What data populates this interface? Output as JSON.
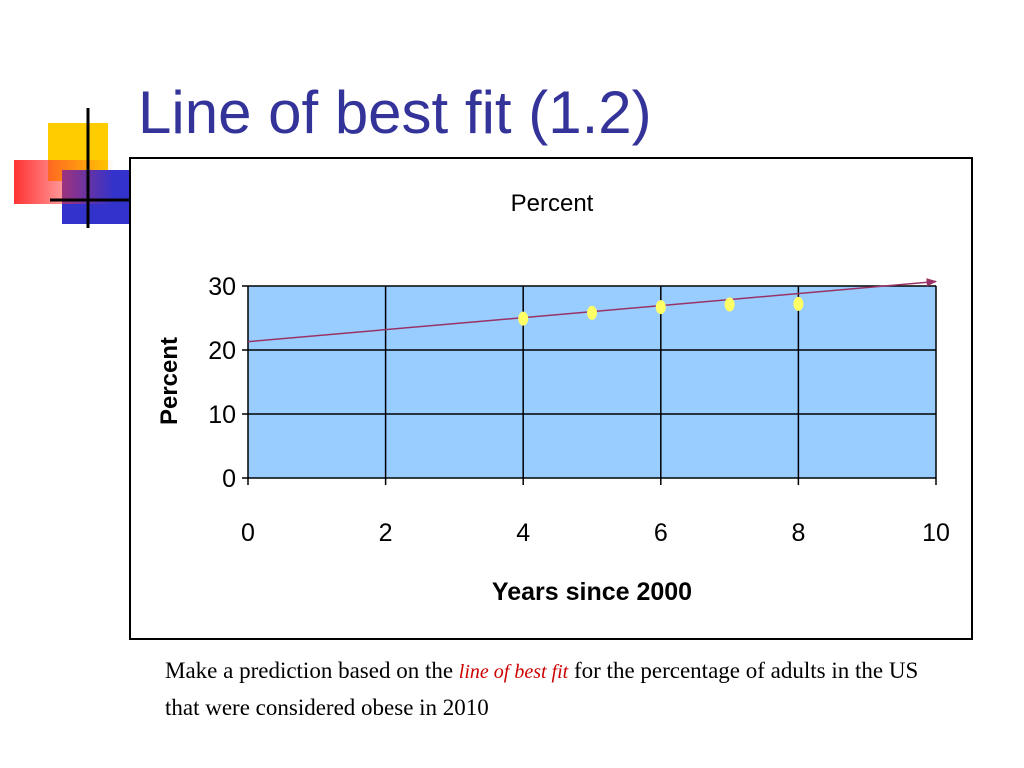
{
  "slide": {
    "title": "Line of best fit (1.2)",
    "accent_color": "#333399",
    "caption": {
      "before": "Make a prediction based on the ",
      "emphasis": "line of best fit",
      "after": " for the percentage of adults in the US that were considered obese in 2010",
      "emphasis_color": "#cc0000"
    }
  },
  "chart_data": {
    "type": "scatter",
    "title": "Percent",
    "xlabel": "Years since 2000",
    "ylabel": "Percent",
    "xlim": [
      0,
      10
    ],
    "ylim": [
      0,
      30
    ],
    "x_ticks": [
      0,
      2,
      4,
      6,
      8,
      10
    ],
    "y_ticks": [
      0,
      10,
      20,
      30
    ],
    "grid": true,
    "plot_background": "#99ccff",
    "series": [
      {
        "type": "scatter",
        "color": "#ffff66",
        "points": [
          {
            "x": 4,
            "y": 24.9
          },
          {
            "x": 5,
            "y": 25.8
          },
          {
            "x": 6,
            "y": 26.7
          },
          {
            "x": 7,
            "y": 27.1
          },
          {
            "x": 8,
            "y": 27.2
          }
        ]
      },
      {
        "type": "trendline",
        "color": "#993366",
        "from": {
          "x": 0,
          "y": 21.3
        },
        "to": {
          "x": 10,
          "y": 30.7
        }
      }
    ]
  }
}
